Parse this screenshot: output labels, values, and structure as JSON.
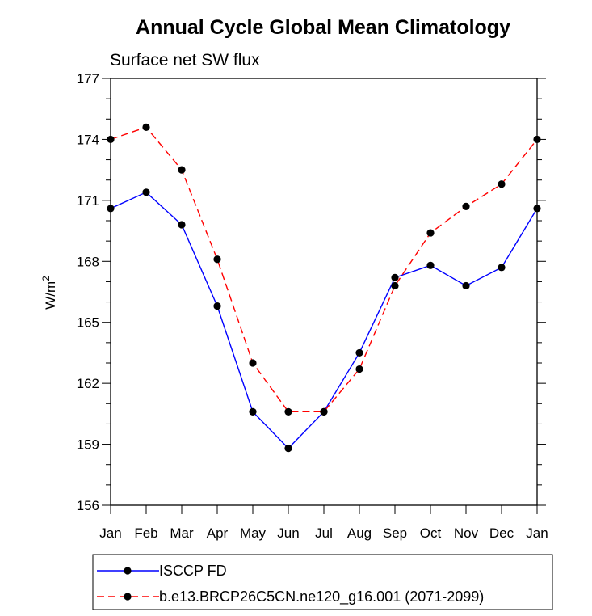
{
  "chart_data": {
    "type": "line",
    "title": "Annual Cycle Global Mean Climatology",
    "subtitle": "Surface net SW flux",
    "xlabel": "",
    "ylabel": "W/m",
    "ylabel_superscript": "2",
    "categories": [
      "Jan",
      "Feb",
      "Mar",
      "Apr",
      "May",
      "Jun",
      "Jul",
      "Aug",
      "Sep",
      "Oct",
      "Nov",
      "Dec",
      "Jan"
    ],
    "ylim": [
      156,
      177
    ],
    "yticks": [
      156,
      159,
      162,
      165,
      168,
      171,
      174,
      177
    ],
    "yticks_labels": [
      "156",
      "159",
      "162",
      "165",
      "168",
      "171",
      "174",
      "177"
    ],
    "grid": false,
    "legend_placement": "bottom",
    "series": [
      {
        "name": "ISCCP FD",
        "color": "#0000ff",
        "dash": "solid",
        "values": [
          170.6,
          171.4,
          169.8,
          165.8,
          160.6,
          158.8,
          160.6,
          163.5,
          167.2,
          167.8,
          166.8,
          167.7,
          170.6
        ]
      },
      {
        "name": "b.e13.BRCP26C5CN.ne120_g16.001 (2071-2099)",
        "color": "#ff0000",
        "dash": "dashed",
        "values": [
          174.0,
          174.6,
          172.5,
          168.1,
          163.0,
          160.6,
          160.6,
          162.7,
          166.8,
          169.4,
          170.7,
          171.8,
          174.0
        ]
      }
    ]
  }
}
